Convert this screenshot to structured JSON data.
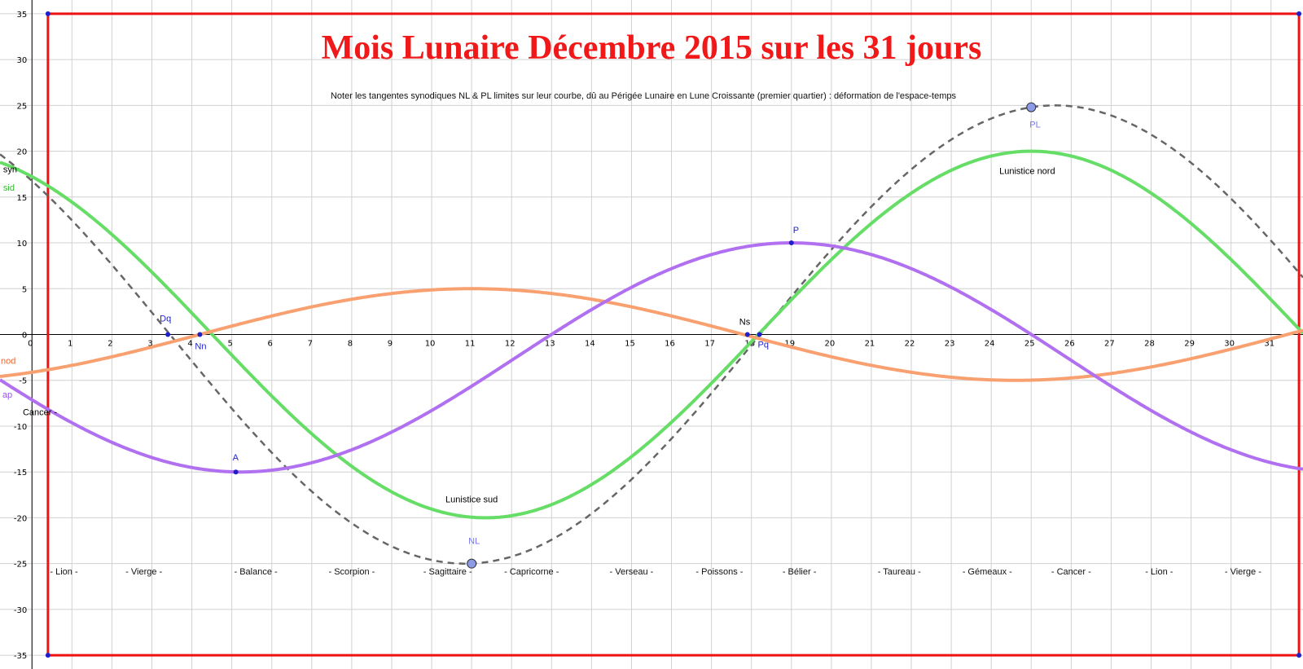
{
  "chart_data": {
    "type": "line",
    "title": "Mois Lunaire Décembre 2015 sur les 31 jours",
    "subtitle": "Noter les tangentes synodiques NL & PL limites sur leur courbe, dû au Périgée Lunaire en Lune Croissante (premier quartier) : déformation de l'espace-temps",
    "xlim": [
      -0.8,
      31.8
    ],
    "ylim": [
      -36.5,
      36.5
    ],
    "x_ticks": [
      0,
      1,
      2,
      3,
      4,
      5,
      6,
      7,
      8,
      9,
      10,
      11,
      12,
      13,
      14,
      15,
      16,
      17,
      18,
      19,
      20,
      21,
      22,
      23,
      24,
      25,
      26,
      27,
      28,
      29,
      30,
      31
    ],
    "y_ticks": [
      -35,
      -30,
      -25,
      -20,
      -15,
      -10,
      -5,
      0,
      5,
      10,
      15,
      20,
      25,
      30,
      35
    ],
    "grid": true,
    "series": [
      {
        "name": "syn",
        "color": "#666666",
        "dashed": true,
        "amplitude": 25,
        "period": 29.53,
        "phase_peak_x": 25.6
      },
      {
        "name": "sid",
        "color": "#66dd66",
        "dashed": false,
        "amplitude": 20,
        "period": 27.32,
        "phase_peak_x": 25.0
      },
      {
        "name": "nod",
        "color": "#f8a070",
        "dashed": false,
        "amplitude": 5,
        "period": 27.21,
        "phase_peak_x": 11.0
      },
      {
        "name": "ap",
        "color": "#b070f0",
        "dashed": false,
        "amplitude": 12.5,
        "offset": -2.5,
        "period": 27.55,
        "phase_peak_x": 19.0
      }
    ],
    "frame": {
      "color": "#ee1111",
      "x": [
        0.4,
        31.7
      ],
      "y": [
        -35,
        35
      ]
    },
    "points": [
      {
        "label": "Dq",
        "x": 3.4,
        "y": 0,
        "color": "#1f1fcc",
        "big": false,
        "lx": -10,
        "ly": -16
      },
      {
        "label": "Nn",
        "x": 4.2,
        "y": 0,
        "color": "#1f1fcc",
        "big": false,
        "lx": -6,
        "ly": 18
      },
      {
        "label": "A",
        "x": 5.1,
        "y": -15,
        "color": "#1f1fcc",
        "big": false,
        "lx": -4,
        "ly": -14
      },
      {
        "label": "NL",
        "x": 11.0,
        "y": -25,
        "color": "#7777ee",
        "big": true,
        "lx": -4,
        "ly": -24
      },
      {
        "label": "Ns",
        "x": 17.9,
        "y": 0,
        "color": "#000000",
        "big": false,
        "lx": -10,
        "ly": -12
      },
      {
        "label": "Pq",
        "x": 18.2,
        "y": 0,
        "color": "#1f1fcc",
        "big": false,
        "lx": -2,
        "ly": 16
      },
      {
        "label": "P",
        "x": 19.0,
        "y": 10,
        "color": "#1f1fcc",
        "big": false,
        "lx": 2,
        "ly": -12
      },
      {
        "label": "PL",
        "x": 25.0,
        "y": 24.8,
        "color": "#7777ee",
        "big": true,
        "lx": -2,
        "ly": 25
      }
    ],
    "annotations": [
      {
        "text": "Lunistice nord",
        "x": 24.9,
        "y": 17.5
      },
      {
        "text": "Lunistice sud",
        "x": 11.0,
        "y": -18.3
      },
      {
        "text": "Cancer -",
        "x": 0.2,
        "y": -8.8
      }
    ],
    "series_labels": [
      {
        "text": "syn",
        "x": -0.72,
        "y": 17.7,
        "color": "#000000"
      },
      {
        "text": "sid",
        "x": -0.72,
        "y": 15.7,
        "color": "#33bb33"
      },
      {
        "text": "nod",
        "x": -0.78,
        "y": -3.2,
        "color": "#ee6633"
      },
      {
        "text": "ap",
        "x": -0.74,
        "y": -6.9,
        "color": "#9955ee"
      }
    ],
    "zodiac_y": -26.2,
    "zodiac": [
      {
        "text": "- Lion -",
        "x": 0.8
      },
      {
        "text": "- Vierge -",
        "x": 2.8
      },
      {
        "text": "- Balance -",
        "x": 5.6
      },
      {
        "text": "- Scorpion -",
        "x": 8.0
      },
      {
        "text": "- Sagittaire -",
        "x": 10.4
      },
      {
        "text": "- Capricorne -",
        "x": 12.5
      },
      {
        "text": "- Verseau -",
        "x": 15.0
      },
      {
        "text": "- Poissons -",
        "x": 17.2
      },
      {
        "text": "- Bélier -",
        "x": 19.2
      },
      {
        "text": "- Taureau -",
        "x": 21.7
      },
      {
        "text": "- Gémeaux -",
        "x": 23.9
      },
      {
        "text": "- Cancer -",
        "x": 26.0
      },
      {
        "text": "- Lion -",
        "x": 28.2
      },
      {
        "text": "- Vierge -",
        "x": 30.3
      }
    ]
  }
}
